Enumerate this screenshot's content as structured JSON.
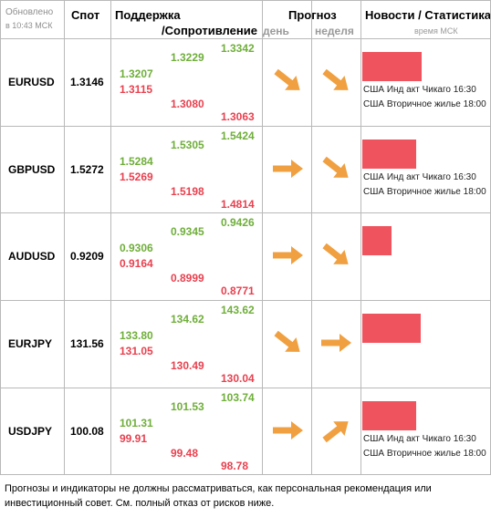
{
  "header": {
    "updated": "Обновлено",
    "updated_time": "в 10:43 МСК",
    "spot": "Спот",
    "support": "Поддержка",
    "resistance": "/Сопротивление",
    "forecast": "Прогноз",
    "day": "день",
    "week": "неделя",
    "news": "Новости / Статистика",
    "time_msk": "время МСК"
  },
  "rows": [
    {
      "pair": "EURUSD",
      "spot": "1.3146",
      "s1": "1.3207",
      "r1": "1.3115",
      "s2": "1.3229",
      "r2": "1.3080",
      "s3": "1.3342",
      "r3": "1.3063",
      "day": "down",
      "week": "down",
      "bar": 0.65,
      "news": [
        "США Инд акт Чикаго 16:30",
        "США Вторичное жилье 18:00"
      ]
    },
    {
      "pair": "GBPUSD",
      "spot": "1.5272",
      "s1": "1.5284",
      "r1": "1.5269",
      "s2": "1.5305",
      "r2": "1.5198",
      "s3": "1.5424",
      "r3": "1.4814",
      "day": "right",
      "week": "down",
      "bar": 0.59,
      "news": [
        "США Инд акт Чикаго 16:30",
        "США Вторичное жилье 18:00"
      ]
    },
    {
      "pair": "AUDUSD",
      "spot": "0.9209",
      "s1": "0.9306",
      "r1": "0.9164",
      "s2": "0.9345",
      "r2": "0.8999",
      "s3": "0.9426",
      "r3": "0.8771",
      "day": "right",
      "week": "down",
      "bar": 0.32,
      "news": []
    },
    {
      "pair": "EURJPY",
      "spot": "131.56",
      "s1": "133.80",
      "r1": "131.05",
      "s2": "134.62",
      "r2": "130.49",
      "s3": "143.62",
      "r3": "130.04",
      "day": "down",
      "week": "right",
      "bar": 0.64,
      "news": []
    },
    {
      "pair": "USDJPY",
      "spot": "100.08",
      "s1": "101.31",
      "r1": "99.91",
      "s2": "101.53",
      "r2": "99.48",
      "s3": "103.74",
      "r3": "98.78",
      "day": "right",
      "week": "up",
      "bar": 0.59,
      "news": [
        "США Инд акт Чикаго 16:30",
        "США Вторичное жилье 18:00"
      ]
    }
  ],
  "colors": {
    "green": "#6fae3a",
    "red": "#e8414f",
    "arrow": "#f0a040",
    "bar": "#ef545e"
  },
  "disclaimer": "Прогнозы и индикаторы не должны рассматриваться, как персональная рекомендация или инвестиционный совет. См. полный отказ от рисков ниже."
}
